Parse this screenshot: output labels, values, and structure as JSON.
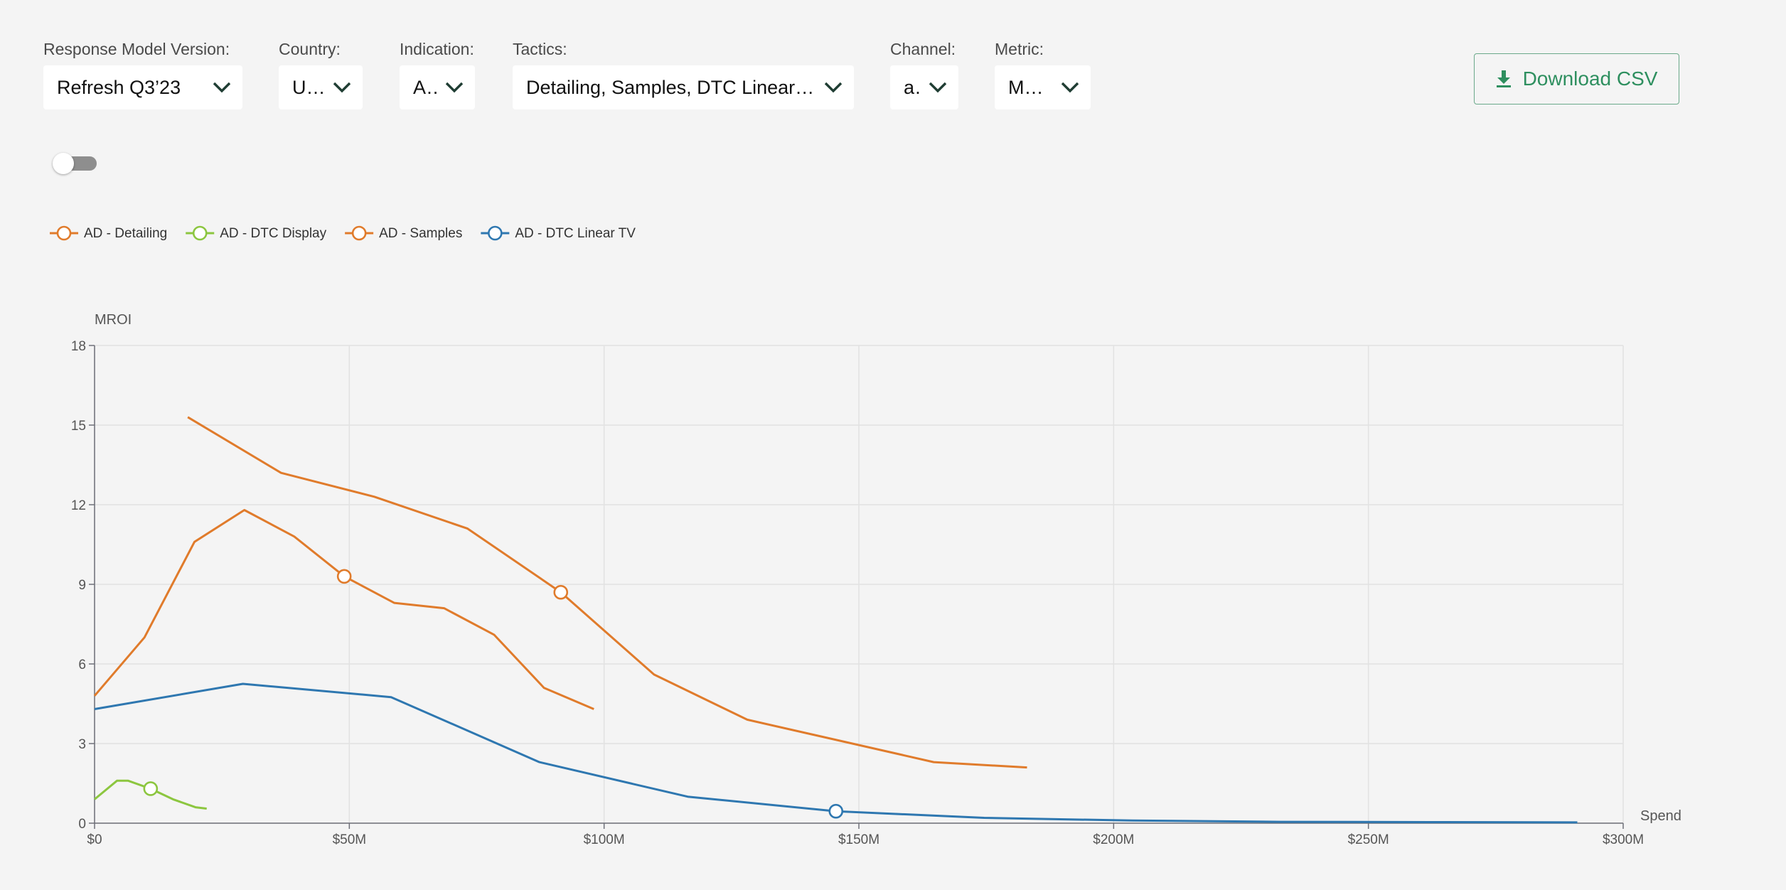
{
  "filters": {
    "model": {
      "label": "Response Model Version:",
      "value": "Refresh Q3’23"
    },
    "country": {
      "label": "Country:",
      "value": "USA"
    },
    "indication": {
      "label": "Indication:",
      "value": "AD"
    },
    "tactics": {
      "label": "Tactics:",
      "value": "Detailing, Samples, DTC Linear TV..."
    },
    "channel": {
      "label": "Channel:",
      "value": "all"
    },
    "metric": {
      "label": "Metric:",
      "value": "MROI"
    }
  },
  "download": {
    "label": "Download CSV",
    "icon": "download-icon"
  },
  "toggle": {
    "on": false
  },
  "colors": {
    "accent": "#2e8f5f",
    "orange": "#e07b2b",
    "green": "#8cc63f",
    "blue": "#2e77b0"
  },
  "chart_data": {
    "type": "line",
    "ylabel": "MROI",
    "xlabel": "Spend",
    "xlim": [
      0,
      300
    ],
    "ylim": [
      0,
      18
    ],
    "x_unit": "$M",
    "xticks": [
      "$0",
      "$50M",
      "$100M",
      "$150M",
      "$200M",
      "$250M",
      "$300M"
    ],
    "yticks": [
      "0",
      "3",
      "6",
      "9",
      "12",
      "15",
      "18"
    ],
    "grid": true,
    "legend_position": "top-left",
    "series": [
      {
        "name": "AD - Detailing",
        "color": "#e07b2b",
        "points": [
          [
            18.3,
            15.3
          ],
          [
            36.6,
            13.2
          ],
          [
            54.9,
            12.3
          ],
          [
            73.2,
            11.1
          ],
          [
            91.5,
            8.7
          ],
          [
            109.8,
            5.6
          ],
          [
            128.1,
            3.9
          ],
          [
            164.7,
            2.3
          ],
          [
            183,
            2.1
          ]
        ],
        "marker": [
          91.5,
          8.7
        ]
      },
      {
        "name": "AD - DTC Display",
        "color": "#8cc63f",
        "points": [
          [
            0,
            0.9
          ],
          [
            4.4,
            1.6
          ],
          [
            6.6,
            1.6
          ],
          [
            11,
            1.3
          ],
          [
            15.4,
            0.9
          ],
          [
            19.8,
            0.6
          ],
          [
            22,
            0.55
          ]
        ],
        "marker": [
          11,
          1.3
        ]
      },
      {
        "name": "AD - Samples",
        "color": "#e07b2b",
        "points": [
          [
            0,
            4.8
          ],
          [
            9.8,
            7.0
          ],
          [
            19.6,
            10.6
          ],
          [
            29.4,
            11.8
          ],
          [
            39.2,
            10.8
          ],
          [
            49,
            9.3
          ],
          [
            58.8,
            8.3
          ],
          [
            68.6,
            8.1
          ],
          [
            78.4,
            7.1
          ],
          [
            88.2,
            5.1
          ],
          [
            98,
            4.3
          ]
        ],
        "marker": [
          49,
          9.3
        ]
      },
      {
        "name": "AD - DTC Linear TV",
        "color": "#2e77b0",
        "points": [
          [
            0,
            4.3
          ],
          [
            29.1,
            5.25
          ],
          [
            58.2,
            4.75
          ],
          [
            87.3,
            2.3
          ],
          [
            116.4,
            1.0
          ],
          [
            145.5,
            0.45
          ],
          [
            174.6,
            0.2
          ],
          [
            203.7,
            0.1
          ],
          [
            232.8,
            0.05
          ],
          [
            261.9,
            0.04
          ],
          [
            291,
            0.03
          ]
        ],
        "marker": [
          145.5,
          0.45
        ]
      }
    ]
  }
}
